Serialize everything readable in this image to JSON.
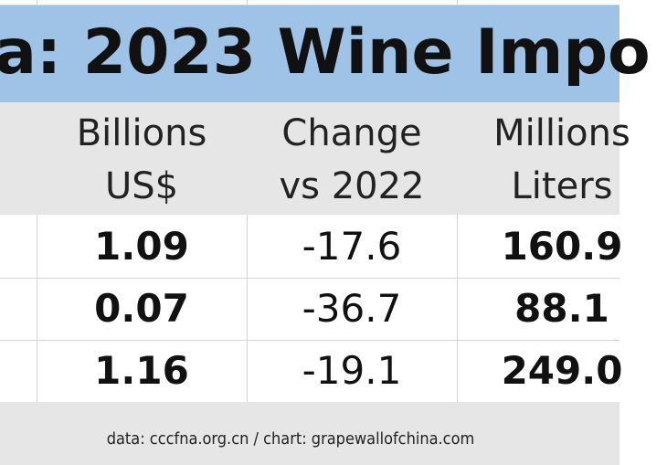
{
  "title": "a: 2023 Wine Impo",
  "table": {
    "header": [
      [
        "Billions",
        "US$"
      ],
      [
        "Change",
        "vs 2022"
      ],
      [
        "Millions",
        "Liters"
      ]
    ],
    "rows": [
      [
        "1.09",
        "-17.6",
        "160.9"
      ],
      [
        "0.07",
        "-36.7",
        "88.1"
      ],
      [
        "1.16",
        "-19.1",
        "249.0"
      ]
    ]
  },
  "footer": "data: cccfna.org.cn / chart: grapewallofchina.com"
}
